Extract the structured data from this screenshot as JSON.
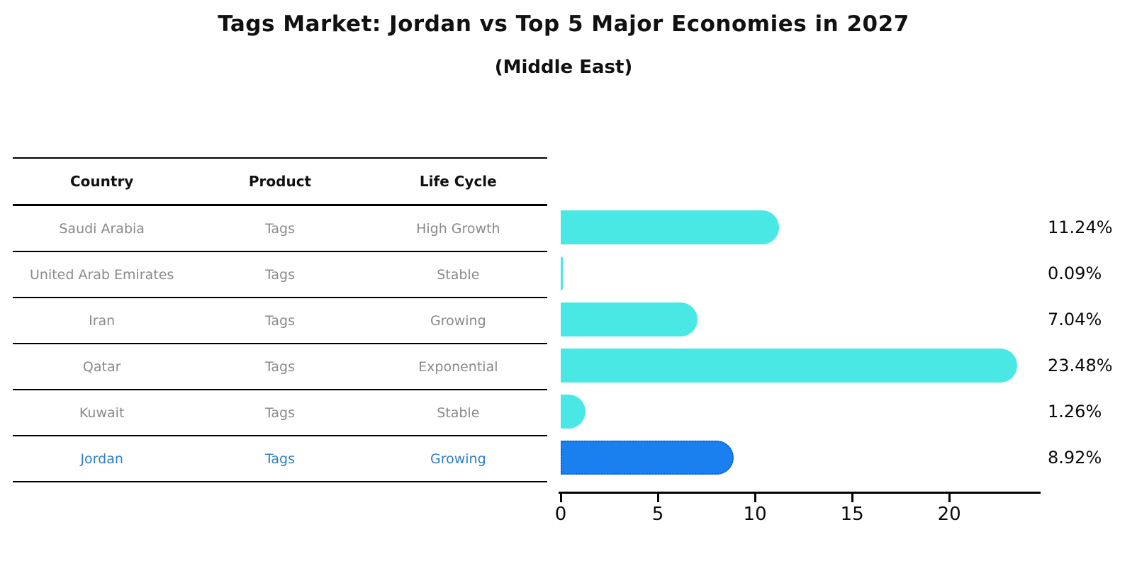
{
  "title": "Tags Market: Jordan vs Top 5 Major Economies in 2027",
  "subtitle": "(Middle East)",
  "table": {
    "columns": [
      "Country",
      "Product",
      "Life Cycle"
    ],
    "rows": [
      {
        "country": "Saudi Arabia",
        "product": "Tags",
        "life_cycle": "High Growth",
        "highlight": false
      },
      {
        "country": "United Arab Emirates",
        "product": "Tags",
        "life_cycle": "Stable",
        "highlight": false
      },
      {
        "country": "Iran",
        "product": "Tags",
        "life_cycle": "Growing",
        "highlight": false
      },
      {
        "country": "Qatar",
        "product": "Tags",
        "life_cycle": "Exponential",
        "highlight": false
      },
      {
        "country": "Kuwait",
        "product": "Tags",
        "life_cycle": "Stable",
        "highlight": false
      },
      {
        "country": "Jordan",
        "product": "Tags",
        "life_cycle": "Growing",
        "highlight": true
      }
    ]
  },
  "chart_data": {
    "type": "bar",
    "orientation": "horizontal",
    "title": "Tags Market: Jordan vs Top 5 Major Economies in 2027",
    "subtitle": "(Middle East)",
    "categories": [
      "Saudi Arabia",
      "United Arab Emirates",
      "Iran",
      "Qatar",
      "Kuwait",
      "Jordan"
    ],
    "values": [
      11.24,
      0.09,
      7.04,
      23.48,
      1.26,
      8.92
    ],
    "value_labels": [
      "11.24%",
      "0.09%",
      "7.04%",
      "23.48%",
      "1.26%",
      "8.92%"
    ],
    "xlabel": "",
    "ylabel": "",
    "xlim": [
      0,
      24.7
    ],
    "xticks": [
      0,
      5,
      10,
      15,
      20
    ],
    "grid": false,
    "legend": false,
    "highlight_index": 5
  },
  "colors": {
    "bar_cyan": "#4AE8E4",
    "bar_blue": "#1A80F0",
    "bar_blue_border": "#0E62C8",
    "highlight_text": "#2E7EC6",
    "row_text": "#8A8A8A",
    "header_text": "#111111",
    "axis": "#000000"
  }
}
